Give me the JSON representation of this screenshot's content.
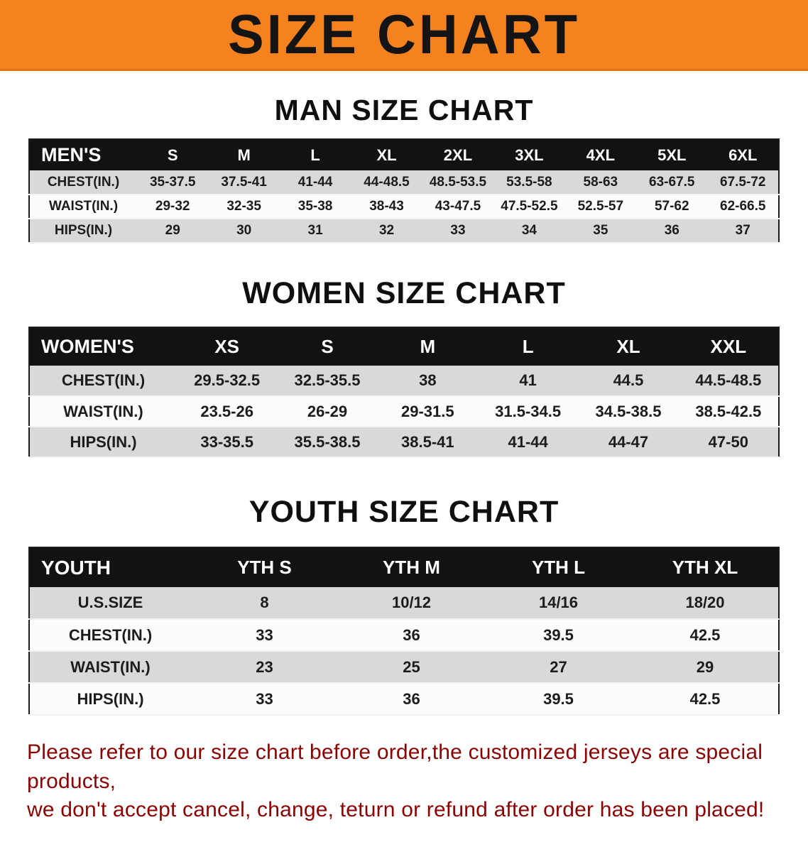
{
  "banner": {
    "title": "SIZE CHART"
  },
  "colors": {
    "banner_orange": "#F5821F",
    "table_header_black": "#121212",
    "row_gray": "#d9d9d9",
    "footer_red": "#8B0000"
  },
  "sections": [
    {
      "heading": "MAN SIZE CHART",
      "table": {
        "header": [
          "MEN'S",
          "S",
          "M",
          "L",
          "XL",
          "2XL",
          "3XL",
          "4XL",
          "5XL",
          "6XL"
        ],
        "rows": [
          [
            "CHEST(IN.)",
            "35-37.5",
            "37.5-41",
            "41-44",
            "44-48.5",
            "48.5-53.5",
            "53.5-58",
            "58-63",
            "63-67.5",
            "67.5-72"
          ],
          [
            "WAIST(IN.)",
            "29-32",
            "32-35",
            "35-38",
            "38-43",
            "43-47.5",
            "47.5-52.5",
            "52.5-57",
            "57-62",
            "62-66.5"
          ],
          [
            "HIPS(IN.)",
            "29",
            "30",
            "31",
            "32",
            "33",
            "34",
            "35",
            "36",
            "37"
          ]
        ]
      }
    },
    {
      "heading": "WOMEN SIZE CHART",
      "table": {
        "header": [
          "WOMEN'S",
          "XS",
          "S",
          "M",
          "L",
          "XL",
          "XXL"
        ],
        "rows": [
          [
            "CHEST(IN.)",
            "29.5-32.5",
            "32.5-35.5",
            "38",
            "41",
            "44.5",
            "44.5-48.5"
          ],
          [
            "WAIST(IN.)",
            "23.5-26",
            "26-29",
            "29-31.5",
            "31.5-34.5",
            "34.5-38.5",
            "38.5-42.5"
          ],
          [
            "HIPS(IN.)",
            "33-35.5",
            "35.5-38.5",
            "38.5-41",
            "41-44",
            "44-47",
            "47-50"
          ]
        ]
      }
    },
    {
      "heading": "YOUTH SIZE CHART",
      "table": {
        "header": [
          "YOUTH",
          "YTH S",
          "YTH M",
          "YTH L",
          "YTH XL"
        ],
        "rows": [
          [
            "U.S.SIZE",
            "8",
            "10/12",
            "14/16",
            "18/20"
          ],
          [
            "CHEST(IN.)",
            "33",
            "36",
            "39.5",
            "42.5"
          ],
          [
            "WAIST(IN.)",
            "23",
            "25",
            "27",
            "29"
          ],
          [
            "HIPS(IN.)",
            "33",
            "36",
            "39.5",
            "42.5"
          ]
        ]
      }
    }
  ],
  "footer": {
    "line1": "Please refer to our size chart before order,the customized jerseys are special products,",
    "line2": "we don't accept cancel, change, teturn or refund after order has been placed!"
  }
}
